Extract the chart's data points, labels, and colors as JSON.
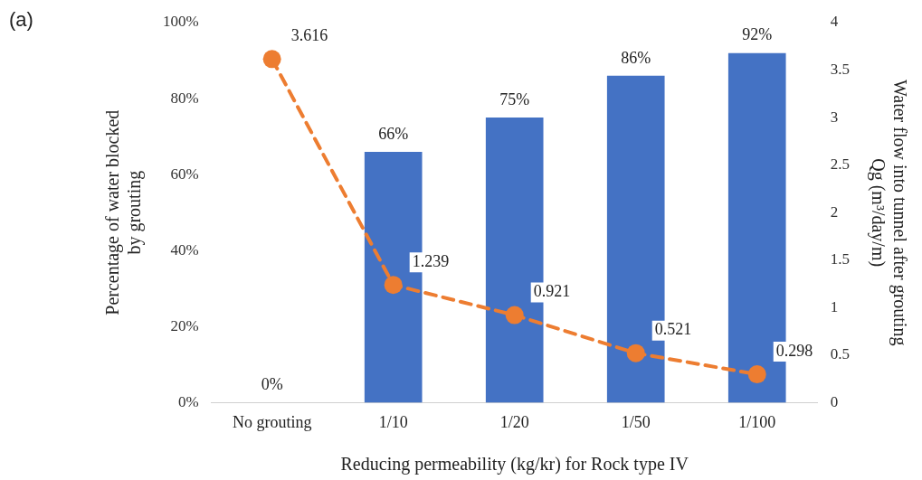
{
  "chart_data": {
    "type": "bar",
    "xlabel": "Reducing permeability (kg/kr) for Rock type IV",
    "ylabel": "Percentage of water blocked\nby grouting",
    "y2label": "Water flow into tunnel after grouting\nQg (m³/day/m)",
    "annotations": [
      "(a)"
    ],
    "categories": [
      "No grouting",
      "1/10",
      "1/20",
      "1/50",
      "1/100"
    ],
    "series": [
      {
        "color": "#4472c4",
        "values": [
          0,
          66,
          75,
          86,
          92
        ],
        "value_labels": [
          "0%",
          "66%",
          "75%",
          "86%",
          "92%"
        ]
      },
      {
        "type": "line",
        "axis": "y2",
        "color": "#ed7d31",
        "marker": "circle",
        "line_style": "dashed",
        "values": [
          3.616,
          1.239,
          0.921,
          0.521,
          0.298
        ],
        "value_labels": [
          "3.616",
          "1.239",
          "0.921",
          "0.521",
          "0.298"
        ]
      }
    ],
    "ylim": [
      0,
      100
    ],
    "yticks": [
      {
        "value": 0,
        "label": "0%"
      },
      {
        "value": 20,
        "label": "20%"
      },
      {
        "value": 40,
        "label": "40%"
      },
      {
        "value": 60,
        "label": "60%"
      },
      {
        "value": 80,
        "label": "80%"
      },
      {
        "value": 100,
        "label": "100%"
      }
    ],
    "y2lim": [
      0,
      4
    ],
    "y2ticks": [
      0,
      0.5,
      1,
      1.5,
      2,
      2.5,
      3,
      3.5,
      4
    ],
    "grid": false,
    "legend": false
  }
}
